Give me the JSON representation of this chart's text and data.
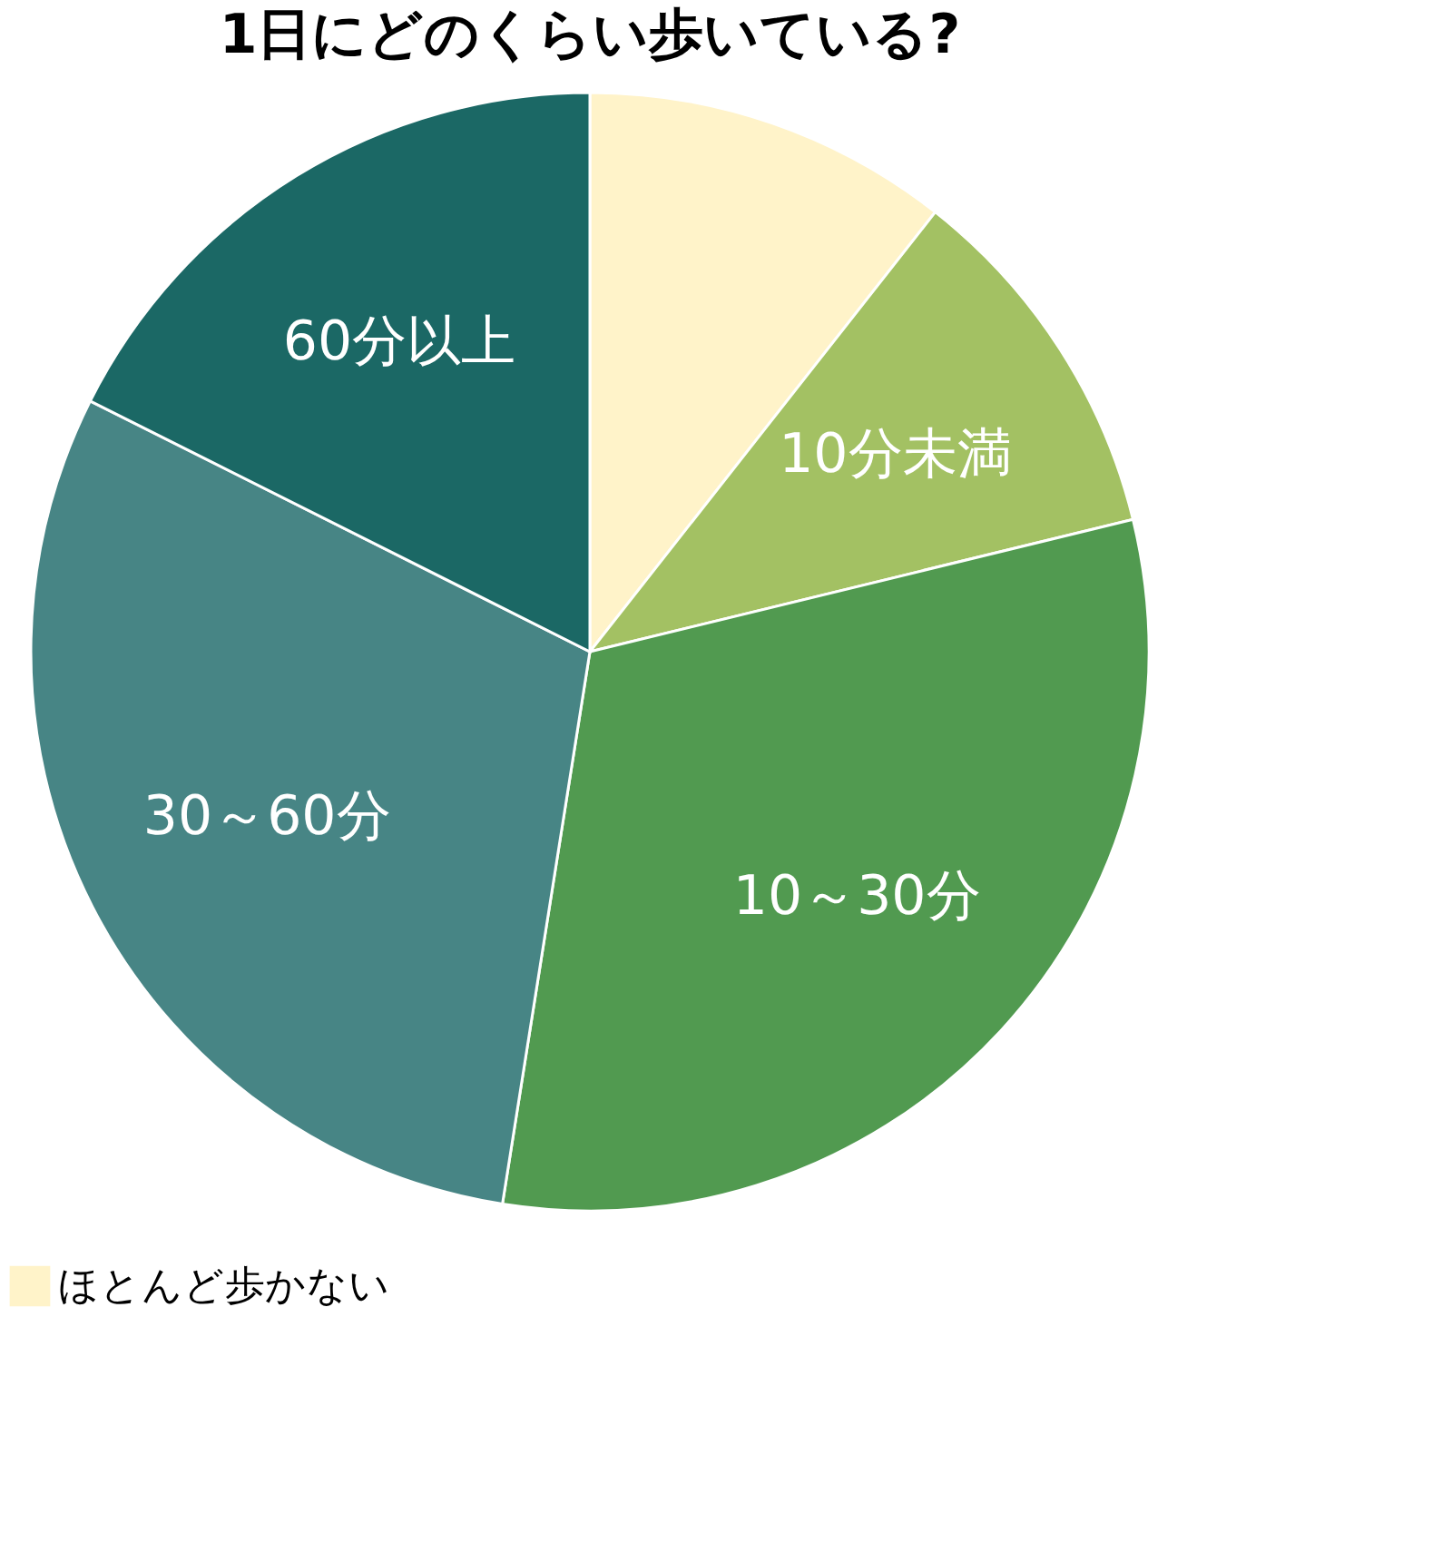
{
  "chart_data": {
    "type": "pie",
    "title": "1日にどのくらい歩いている?",
    "categories": [
      "ほとんど歩かない",
      "10分未満",
      "10～30分",
      "30～60分",
      "60分以上"
    ],
    "values": [
      10.6,
      10.6,
      31.3,
      29.9,
      17.6
    ],
    "colors": [
      "#fff3c9",
      "#a3c163",
      "#519a50",
      "#478585",
      "#1b6865"
    ],
    "legend": "bottom"
  }
}
